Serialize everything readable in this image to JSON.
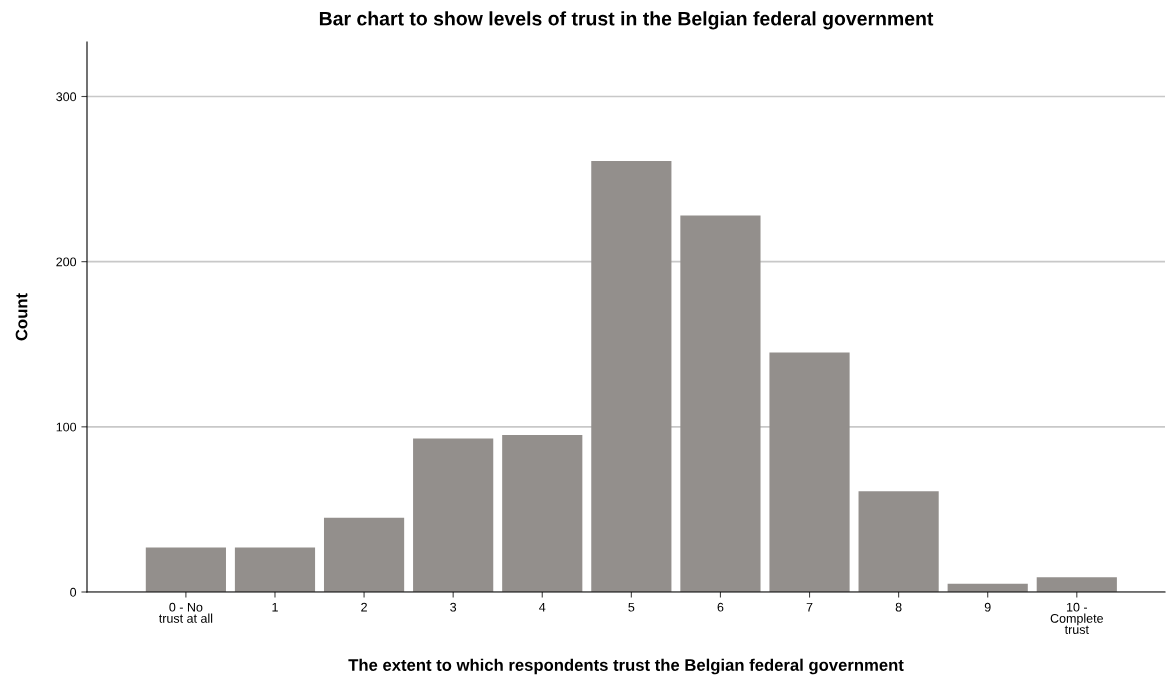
{
  "chart_data": {
    "type": "bar",
    "title": "Bar chart to show levels of trust in the Belgian federal government",
    "xlabel": "The extent to which respondents trust the Belgian federal government",
    "ylabel": "Count",
    "categories": [
      "0 - No\ntrust at all",
      "1",
      "2",
      "3",
      "4",
      "5",
      "6",
      "7",
      "8",
      "9",
      "10 -\nComplete\ntrust"
    ],
    "values": [
      27,
      27,
      45,
      93,
      95,
      261,
      228,
      145,
      61,
      5,
      9
    ],
    "color": "#938f8c",
    "ylim": [
      0,
      333
    ],
    "yticks": [
      0,
      100,
      200,
      300
    ],
    "grid": "y",
    "legend": false
  }
}
